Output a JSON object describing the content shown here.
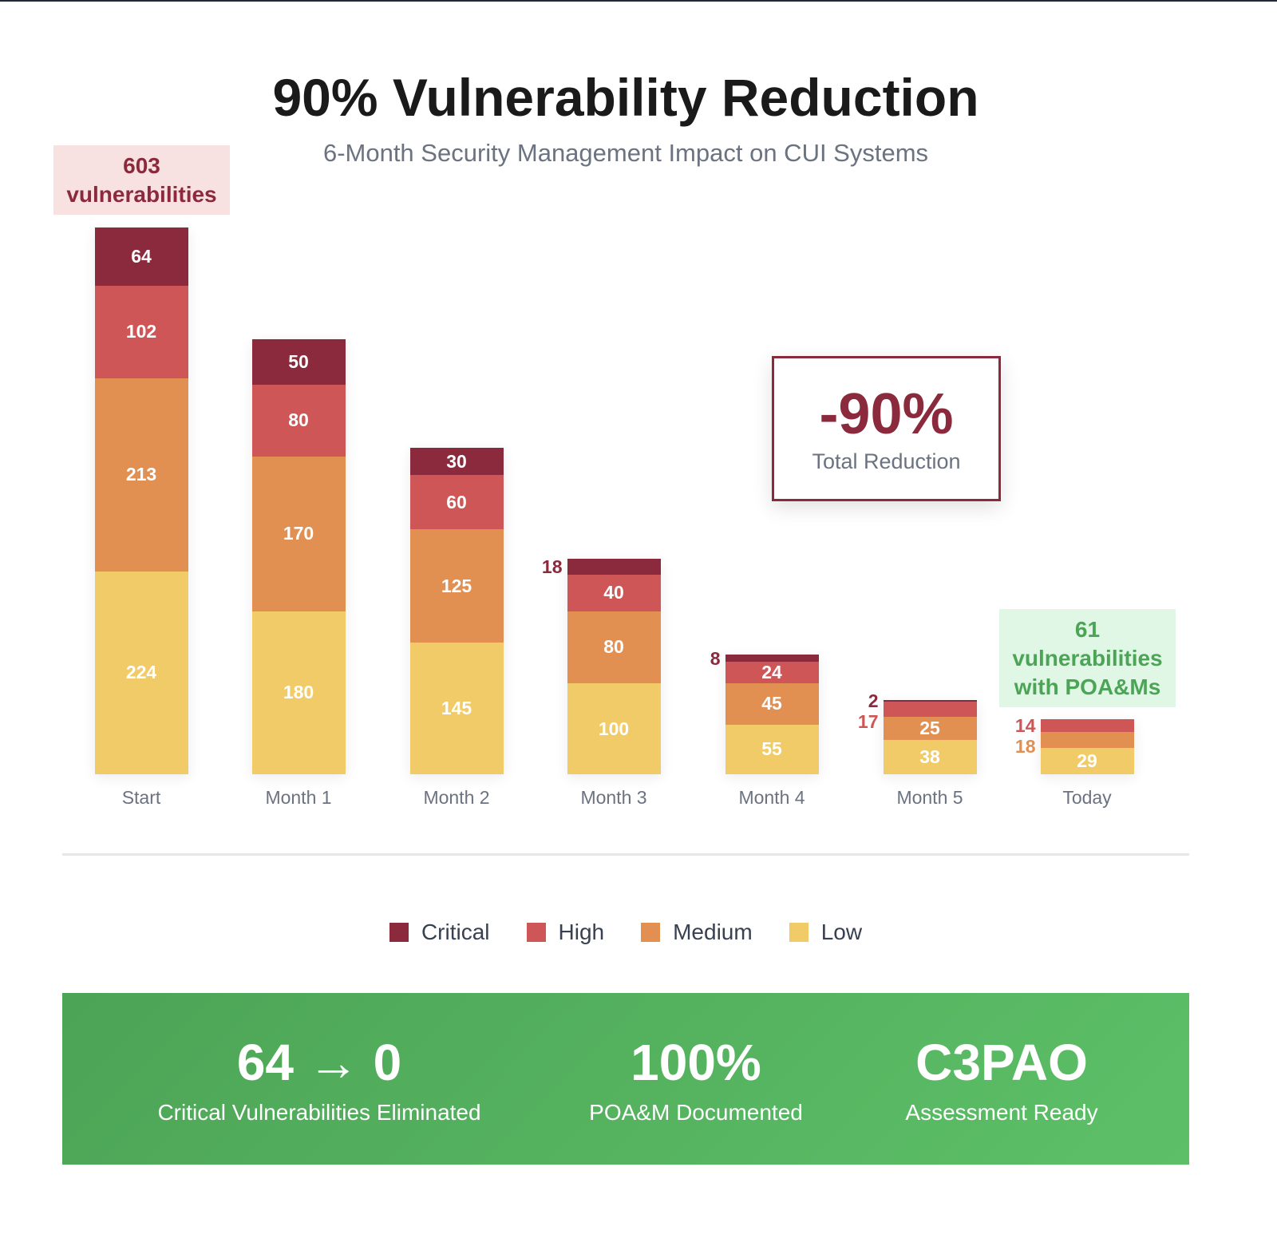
{
  "title": "90% Vulnerability Reduction",
  "subtitle": "6-Month Security Management Impact on CUI Systems",
  "start_badge": {
    "count": "603",
    "label": "vulnerabilities"
  },
  "today_badge": {
    "count": "61",
    "line1": "vulnerabilities",
    "line2": "with POA&Ms"
  },
  "reduction": {
    "value": "-90%",
    "label": "Total Reduction"
  },
  "colors": {
    "Critical": "#8b2a3c",
    "High": "#cf5656",
    "Medium": "#e29052",
    "Low": "#f0cb68"
  },
  "chart_data": {
    "type": "bar",
    "stacked": true,
    "title": "90% Vulnerability Reduction",
    "categories": [
      "Start",
      "Month 1",
      "Month 2",
      "Month 3",
      "Month 4",
      "Month 5",
      "Today"
    ],
    "series": [
      {
        "name": "Low",
        "values": [
          224,
          180,
          145,
          100,
          55,
          38,
          29
        ]
      },
      {
        "name": "Medium",
        "values": [
          213,
          170,
          125,
          80,
          45,
          25,
          18
        ]
      },
      {
        "name": "High",
        "values": [
          102,
          80,
          60,
          40,
          24,
          17,
          14
        ]
      },
      {
        "name": "Critical",
        "values": [
          64,
          50,
          30,
          18,
          8,
          2,
          0
        ]
      }
    ],
    "ylim": [
      0,
      603
    ],
    "legend": "bottom-center"
  },
  "legend": [
    "Critical",
    "High",
    "Medium",
    "Low"
  ],
  "stats": [
    {
      "value": "64 → 0",
      "label": "Critical Vulnerabilities Eliminated"
    },
    {
      "value": "100%",
      "label": "POA&M Documented"
    },
    {
      "value": "C3PAO",
      "label": "Assessment Ready"
    }
  ]
}
